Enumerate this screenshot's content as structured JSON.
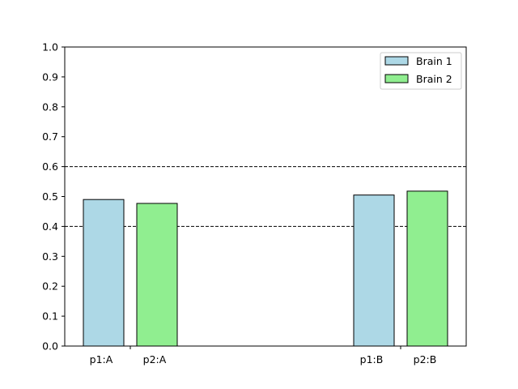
{
  "chart_data": {
    "type": "bar",
    "categories": [
      "p1:A",
      "p2:A",
      "p1:B",
      "p2:B"
    ],
    "series": [
      {
        "name": "Brain 1",
        "color": "#add8e6",
        "bars": [
          {
            "label": "p1:A",
            "value": 0.49
          },
          {
            "label": "p1:B",
            "value": 0.505
          }
        ]
      },
      {
        "name": "Brain 2",
        "color": "#90ee90",
        "bars": [
          {
            "label": "p2:A",
            "value": 0.477
          },
          {
            "label": "p2:B",
            "value": 0.518
          }
        ]
      }
    ],
    "groups": [
      "A",
      "B"
    ],
    "title": "",
    "xlabel": "",
    "ylabel": "",
    "ylim": [
      0,
      1.0
    ],
    "yticks": [
      "0.0",
      "0.1",
      "0.2",
      "0.3",
      "0.4",
      "0.5",
      "0.6",
      "0.7",
      "0.8",
      "0.9",
      "1.0"
    ],
    "reference_lines": [
      0.4,
      0.6
    ],
    "grid": false,
    "legend_position": "top-right"
  }
}
